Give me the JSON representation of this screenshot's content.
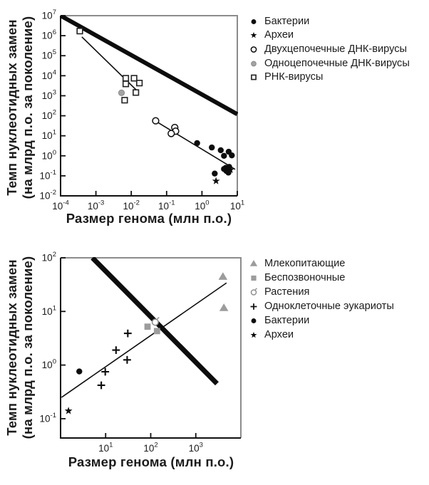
{
  "colors": {
    "black": "#0d0d0d",
    "gray": "#9c9c9c",
    "gray_stroke": "#8a8a8a",
    "border_gray": "#8c8c8c",
    "axis_black": "#111111"
  },
  "chart_data": [
    {
      "type": "scatter",
      "scale": "log-log",
      "x_title": "Размер генома (млн п.о.)",
      "y_title_lines": [
        "Темп нуклеотидных замен",
        "(на млрд п.о. за поколение)"
      ],
      "x_log_range": [
        -4,
        1
      ],
      "y_log_range": [
        -2,
        7
      ],
      "x_tick_exponents": [
        -4,
        -3,
        -2,
        -1,
        0,
        1
      ],
      "y_tick_exponents": [
        7,
        6,
        5,
        4,
        3,
        2,
        1,
        0,
        -1,
        -2
      ],
      "grid": false,
      "legend_position": "right",
      "legend": [
        {
          "label": "Бактерии",
          "marker": "circle-filled"
        },
        {
          "label": "Археи",
          "marker": "star"
        },
        {
          "label": "Двухцепочечные ДНК-вирусы",
          "marker": "circle-open"
        },
        {
          "label": "Одноцепочечные ДНК-вирусы",
          "marker": "circle-gray"
        },
        {
          "label": "РНК-вирусы",
          "marker": "square-open"
        }
      ],
      "ref_line": {
        "comment": "thick mutation-rate isoline, slope -1",
        "x": [
          0.0001,
          10
        ],
        "y": [
          10000000,
          120
        ]
      },
      "fit_lines": [
        {
          "x": [
            0.0004,
            0.015
          ],
          "y": [
            870000,
            1700
          ]
        },
        {
          "x": [
            0.048,
            8.7
          ],
          "y": [
            55,
            0.21
          ]
        }
      ],
      "series": [
        {
          "name": "Археи",
          "marker": "star",
          "points": [
            [
              2.5,
              0.055
            ],
            [
              6.4,
              0.2
            ]
          ]
        },
        {
          "name": "Бактерии",
          "marker": "circle-filled",
          "points": [
            [
              0.73,
              4.3
            ],
            [
              1.9,
              2.6
            ],
            [
              3.4,
              1.9
            ],
            [
              5.7,
              1.6
            ],
            [
              4.2,
              1.0
            ],
            [
              7.0,
              1.05
            ],
            [
              2.3,
              0.13
            ],
            [
              4.2,
              0.22
            ],
            [
              4.7,
              0.25
            ],
            [
              5.9,
              0.28
            ],
            [
              4.9,
              0.175
            ],
            [
              5.6,
              0.145
            ]
          ]
        },
        {
          "name": "Двухцепочечные ДНК-вирусы",
          "marker": "circle-open",
          "points": [
            [
              0.049,
              56
            ],
            [
              0.17,
              26
            ],
            [
              0.18,
              17
            ],
            [
              0.135,
              13
            ]
          ]
        },
        {
          "name": "Одноцепочечные ДНК-вирусы",
          "marker": "circle-gray",
          "points": [
            [
              0.0053,
              1400
            ]
          ]
        },
        {
          "name": "РНК-вирусы",
          "marker": "square-open",
          "points": [
            [
              0.00035,
              1700000
            ],
            [
              0.007,
              7500
            ],
            [
              0.012,
              7500
            ],
            [
              0.007,
              3900
            ],
            [
              0.017,
              4300
            ],
            [
              0.0135,
              1450
            ],
            [
              0.0065,
              600
            ]
          ]
        }
      ]
    },
    {
      "type": "scatter",
      "scale": "log-log",
      "x_title": "Размер генома (млн п.о.)",
      "y_title_lines": [
        "Темп нуклеотидных замен",
        "(на млрд п.о. за поколение)"
      ],
      "x_log_range": [
        0,
        4
      ],
      "y_log_range": [
        -1.36,
        2
      ],
      "x_tick_exponents": [
        1,
        2,
        3
      ],
      "y_tick_exponents": [
        2,
        1,
        0,
        -1
      ],
      "grid": false,
      "legend_position": "right",
      "legend": [
        {
          "label": "Млекопитающие",
          "marker": "triangle-gray"
        },
        {
          "label": "Беспозвоночные",
          "marker": "square-gray"
        },
        {
          "label": "Растения",
          "marker": "plant"
        },
        {
          "label": "Одноклеточные эукариоты",
          "marker": "plus"
        },
        {
          "label": "Бактерии",
          "marker": "circle-filled"
        },
        {
          "label": "Археи",
          "marker": "star"
        }
      ],
      "ref_line": {
        "comment": "thick mutation-rate isoline",
        "x": [
          5.1,
          2950
        ],
        "y": [
          100,
          0.45
        ]
      },
      "fit_lines": [
        {
          "x": [
            1.05,
            4800
          ],
          "y": [
            0.25,
            34
          ]
        }
      ],
      "series": [
        {
          "name": "Археи",
          "marker": "star",
          "points": [
            [
              1.5,
              0.14
            ]
          ]
        },
        {
          "name": "Бактерии",
          "marker": "circle-filled",
          "points": [
            [
              2.6,
              0.76
            ]
          ]
        },
        {
          "name": "Одноклеточные эукариоты",
          "marker": "plus",
          "points": [
            [
              8,
              0.42
            ],
            [
              9.8,
              0.75
            ],
            [
              17,
              1.9
            ],
            [
              30,
              1.25
            ],
            [
              31,
              3.9
            ]
          ]
        },
        {
          "name": "Беспозвоночные",
          "marker": "square-gray",
          "points": [
            [
              85,
              5.2
            ],
            [
              138,
              4.3
            ]
          ]
        },
        {
          "name": "Растения",
          "marker": "plant",
          "points": [
            [
              126,
              6.3
            ]
          ]
        },
        {
          "name": "Млекопитающие",
          "marker": "triangle-gray",
          "points": [
            [
              4000,
              44
            ],
            [
              4200,
              11.5
            ]
          ]
        }
      ]
    }
  ]
}
